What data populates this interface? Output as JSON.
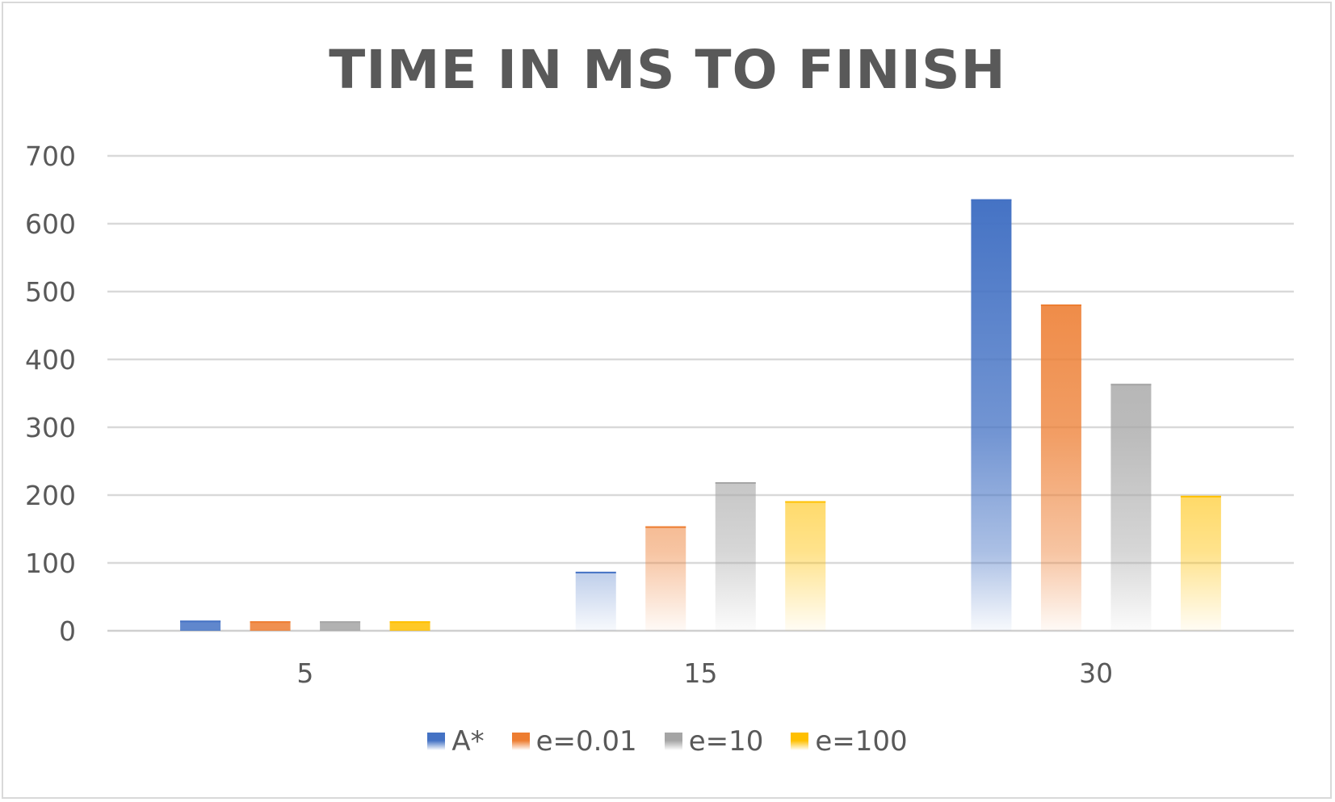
{
  "chart_data": {
    "type": "bar",
    "title": "TIME IN MS TO FINISH",
    "xlabel": "",
    "ylabel": "",
    "categories": [
      "5",
      "15",
      "30"
    ],
    "ylim": [
      0,
      700
    ],
    "yticks": [
      0,
      100,
      200,
      300,
      400,
      500,
      600,
      700
    ],
    "grid": true,
    "legend_position": "bottom",
    "series": [
      {
        "name": "A*",
        "color": "#4472C4",
        "values": [
          15,
          87,
          636
        ]
      },
      {
        "name": "e=0.01",
        "color": "#ED7D31",
        "values": [
          14,
          154,
          481
        ]
      },
      {
        "name": "e=10",
        "color": "#A5A5A5",
        "values": [
          14,
          219,
          364
        ]
      },
      {
        "name": "e=100",
        "color": "#FFC000",
        "values": [
          14,
          191,
          199
        ]
      }
    ]
  }
}
